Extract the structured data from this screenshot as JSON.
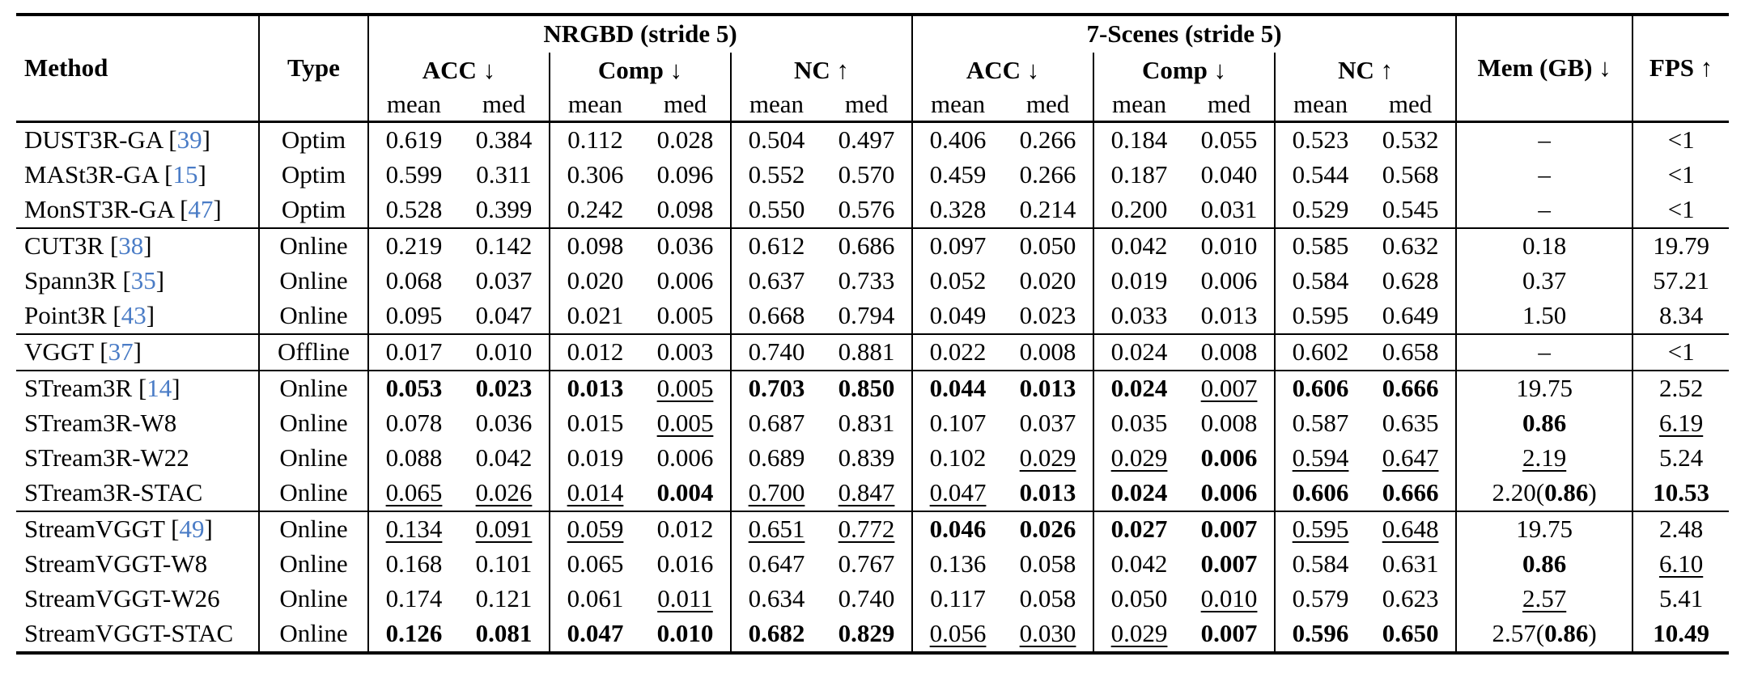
{
  "table": {
    "colors": {
      "citation": "#4a7cc6",
      "text": "#000000",
      "rule": "#000000"
    },
    "header": {
      "method": "Method",
      "type": "Type",
      "groups": [
        "NRGBD (stride 5)",
        "7-Scenes (stride 5)"
      ],
      "metrics": [
        "ACC ↓",
        "Comp ↓",
        "NC ↑",
        "ACC ↓",
        "Comp ↓",
        "NC ↑"
      ],
      "subheaders": [
        "mean",
        "med"
      ],
      "mem": "Mem (GB) ↓",
      "fps": "FPS ↑"
    },
    "groups": [
      {
        "rows": [
          {
            "method": "DUST3R-GA",
            "cite": "39",
            "type": "Optim",
            "cells": [
              "0.619",
              "0.384",
              "0.112",
              "0.028",
              "0.504",
              "0.497",
              "0.406",
              "0.266",
              "0.184",
              "0.055",
              "0.523",
              "0.532",
              "–",
              "<1"
            ]
          },
          {
            "method": "MASt3R-GA",
            "cite": "15",
            "type": "Optim",
            "cells": [
              "0.599",
              "0.311",
              "0.306",
              "0.096",
              "0.552",
              "0.570",
              "0.459",
              "0.266",
              "0.187",
              "0.040",
              "0.544",
              "0.568",
              "–",
              "<1"
            ]
          },
          {
            "method": "MonST3R-GA",
            "cite": "47",
            "type": "Optim",
            "cells": [
              "0.528",
              "0.399",
              "0.242",
              "0.098",
              "0.550",
              "0.576",
              "0.328",
              "0.214",
              "0.200",
              "0.031",
              "0.529",
              "0.545",
              "–",
              "<1"
            ]
          }
        ]
      },
      {
        "rows": [
          {
            "method": "CUT3R",
            "cite": "38",
            "type": "Online",
            "cells": [
              "0.219",
              "0.142",
              "0.098",
              "0.036",
              "0.612",
              "0.686",
              "0.097",
              "0.050",
              "0.042",
              "0.010",
              "0.585",
              "0.632",
              "0.18",
              "19.79"
            ]
          },
          {
            "method": "Spann3R",
            "cite": "35",
            "type": "Online",
            "cells": [
              "0.068",
              "0.037",
              "0.020",
              "0.006",
              "0.637",
              "0.733",
              "0.052",
              "0.020",
              "0.019",
              "0.006",
              "0.584",
              "0.628",
              "0.37",
              "57.21"
            ]
          },
          {
            "method": "Point3R",
            "cite": "43",
            "type": "Online",
            "cells": [
              "0.095",
              "0.047",
              "0.021",
              "0.005",
              "0.668",
              "0.794",
              "0.049",
              "0.023",
              "0.033",
              "0.013",
              "0.595",
              "0.649",
              "1.50",
              "8.34"
            ]
          }
        ]
      },
      {
        "rows": [
          {
            "method": "VGGT",
            "cite": "37",
            "type": "Offline",
            "cells": [
              "0.017",
              "0.010",
              "0.012",
              "0.003",
              "0.740",
              "0.881",
              "0.022",
              "0.008",
              "0.024",
              "0.008",
              "0.602",
              "0.658",
              "–",
              "<1"
            ]
          }
        ]
      },
      {
        "rows": [
          {
            "method": "STream3R",
            "cite": "14",
            "type": "Online",
            "cells": [
              "**0.053**",
              "**0.023**",
              "**0.013**",
              "__0.005__",
              "**0.703**",
              "**0.850**",
              "**0.044**",
              "**0.013**",
              "**0.024**",
              "__0.007__",
              "**0.606**",
              "**0.666**",
              "19.75",
              "2.52"
            ]
          },
          {
            "method": "STream3R-W8",
            "cite": null,
            "type": "Online",
            "cells": [
              "0.078",
              "0.036",
              "0.015",
              "__0.005__",
              "0.687",
              "0.831",
              "0.107",
              "0.037",
              "0.035",
              "0.008",
              "0.587",
              "0.635",
              "**0.86**",
              "__6.19__"
            ]
          },
          {
            "method": "STream3R-W22",
            "cite": null,
            "type": "Online",
            "cells": [
              "0.088",
              "0.042",
              "0.019",
              "0.006",
              "0.689",
              "0.839",
              "0.102",
              "__0.029__",
              "__0.029__",
              "**0.006**",
              "__0.594__",
              "__0.647__",
              "__2.19__",
              "5.24"
            ]
          },
          {
            "method": "STream3R-STAC",
            "cite": null,
            "type": "Online",
            "cells": [
              "__0.065__",
              "__0.026__",
              "__0.014__",
              "**0.004**",
              "__0.700__",
              "__0.847__",
              "__0.047__",
              "**0.013**",
              "**0.024**",
              "**0.006**",
              "**0.606**",
              "**0.666**",
              "2.20(**0.86**)",
              "**10.53**"
            ]
          }
        ]
      },
      {
        "rows": [
          {
            "method": "StreamVGGT",
            "cite": "49",
            "type": "Online",
            "cells": [
              "__0.134__",
              "__0.091__",
              "__0.059__",
              "0.012",
              "__0.651__",
              "__0.772__",
              "**0.046**",
              "**0.026**",
              "**0.027**",
              "**0.007**",
              "__0.595__",
              "__0.648__",
              "19.75",
              "2.48"
            ]
          },
          {
            "method": "StreamVGGT-W8",
            "cite": null,
            "type": "Online",
            "cells": [
              "0.168",
              "0.101",
              "0.065",
              "0.016",
              "0.647",
              "0.767",
              "0.136",
              "0.058",
              "0.042",
              "**0.007**",
              "0.584",
              "0.631",
              "**0.86**",
              "__6.10__"
            ]
          },
          {
            "method": "StreamVGGT-W26",
            "cite": null,
            "type": "Online",
            "cells": [
              "0.174",
              "0.121",
              "0.061",
              "__0.011__",
              "0.634",
              "0.740",
              "0.117",
              "0.058",
              "0.050",
              "__0.010__",
              "0.579",
              "0.623",
              "__2.57__",
              "5.41"
            ]
          },
          {
            "method": "StreamVGGT-STAC",
            "cite": null,
            "type": "Online",
            "cells": [
              "**0.126**",
              "**0.081**",
              "**0.047**",
              "**0.010**",
              "**0.682**",
              "**0.829**",
              "__0.056__",
              "__0.030__",
              "__0.029__",
              "**0.007**",
              "**0.596**",
              "**0.650**",
              "2.57(**0.86**)",
              "**10.49**"
            ]
          }
        ]
      }
    ]
  }
}
